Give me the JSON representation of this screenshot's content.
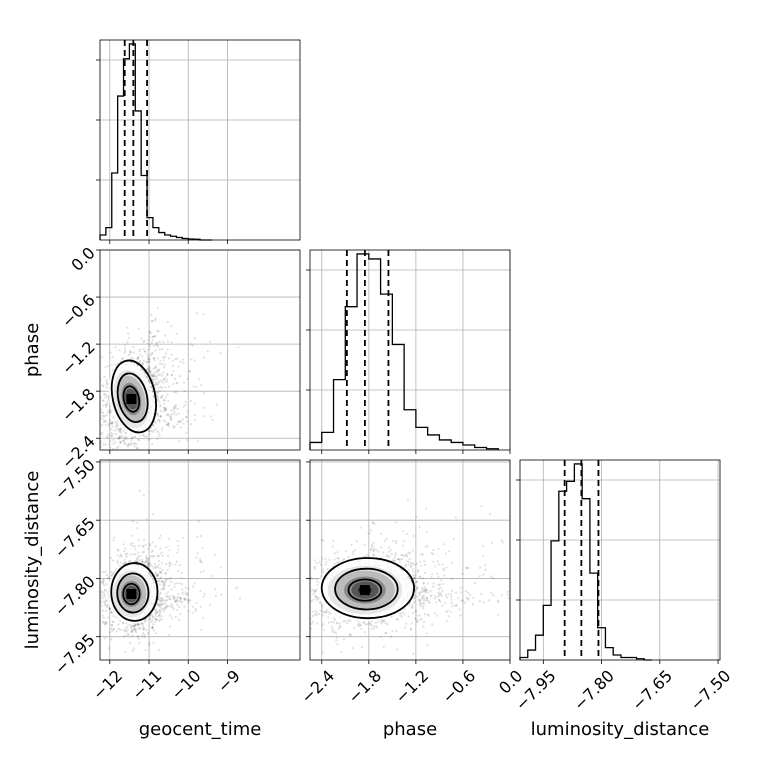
{
  "chart_data": {
    "type": "corner",
    "parameters": [
      "geocent_time",
      "phase",
      "luminosity_distance"
    ],
    "labels": {
      "geocent_time": "geocent_time",
      "phase": "phase",
      "luminosity_distance": "luminosity_distance"
    },
    "axes": {
      "geocent_time": {
        "range": [
          -12.25,
          -7.15
        ],
        "ticks": [
          -12,
          -11,
          -10,
          -9
        ],
        "tick_labels": [
          "−12",
          "−11",
          "−10",
          "−9"
        ]
      },
      "phase": {
        "range": [
          -2.55,
          0.0
        ],
        "ticks": [
          -2.4,
          -1.8,
          -1.2,
          -0.6,
          0.0
        ],
        "tick_labels": [
          "−2.4",
          "−1.8",
          "−1.2",
          "−0.6",
          "0.0"
        ]
      },
      "luminosity_distance": {
        "range": [
          -8.01,
          -7.495
        ],
        "ticks": [
          -7.95,
          -7.8,
          -7.65,
          -7.5
        ],
        "tick_labels": [
          "−7.95",
          "−7.80",
          "−7.65",
          "−7.50"
        ]
      }
    },
    "histograms": {
      "geocent_time": {
        "bin_edges": [
          -12.25,
          -12.1,
          -11.95,
          -11.8,
          -11.65,
          -11.5,
          -11.35,
          -11.2,
          -11.05,
          -10.9,
          -10.75,
          -10.6,
          -10.45,
          -10.3,
          -10.15,
          -10.0,
          -9.85,
          -9.7,
          -9.55,
          -9.4
        ],
        "counts": [
          2,
          5,
          27,
          58,
          73,
          79,
          52,
          26,
          9,
          5,
          3,
          2,
          1.5,
          1,
          0.6,
          0.4,
          0.3,
          0,
          0
        ],
        "quantiles": [
          -11.62,
          -11.4,
          -11.05
        ]
      },
      "phase": {
        "bin_edges": [
          -2.55,
          -2.4,
          -2.25,
          -2.1,
          -1.95,
          -1.8,
          -1.65,
          -1.5,
          -1.35,
          -1.2,
          -1.05,
          -0.9,
          -0.75,
          -0.6,
          -0.45,
          -0.3,
          -0.15
        ],
        "counts": [
          3,
          7,
          28,
          57,
          78,
          76,
          62,
          42,
          16,
          9,
          6,
          4,
          3,
          2,
          1,
          0.5
        ],
        "quantiles": [
          -2.08,
          -1.85,
          -1.55
        ]
      },
      "luminosity_distance": {
        "bin_edges": [
          -8.01,
          -7.99,
          -7.97,
          -7.95,
          -7.93,
          -7.91,
          -7.89,
          -7.87,
          -7.85,
          -7.83,
          -7.81,
          -7.79,
          -7.77,
          -7.75,
          -7.73,
          -7.71,
          -7.69,
          -7.67
        ],
        "counts": [
          1,
          4,
          10,
          22,
          48,
          68,
          72,
          79,
          65,
          35,
          13,
          5,
          2,
          1,
          1,
          0.5,
          0
        ],
        "quantiles": [
          -7.895,
          -7.852,
          -7.808
        ]
      }
    },
    "joint": [
      {
        "x": "geocent_time",
        "y": "phase",
        "center": [
          -11.45,
          -1.9
        ],
        "spread": [
          0.35,
          0.3
        ],
        "rotation_deg": 12,
        "contour_levels_sigma": [
          0.5,
          1.0,
          1.5
        ]
      },
      {
        "x": "geocent_time",
        "y": "luminosity_distance",
        "center": [
          -11.45,
          -7.84
        ],
        "spread": [
          0.38,
          0.048
        ],
        "rotation_deg": 0,
        "contour_levels_sigma": [
          0.5,
          1.0,
          1.5
        ]
      },
      {
        "x": "phase",
        "y": "luminosity_distance",
        "center": [
          -1.85,
          -7.83
        ],
        "spread": [
          0.38,
          0.05
        ],
        "rotation_deg": 0,
        "contour_levels_sigma": [
          0.5,
          1.0,
          1.5
        ]
      }
    ],
    "grid": true
  }
}
